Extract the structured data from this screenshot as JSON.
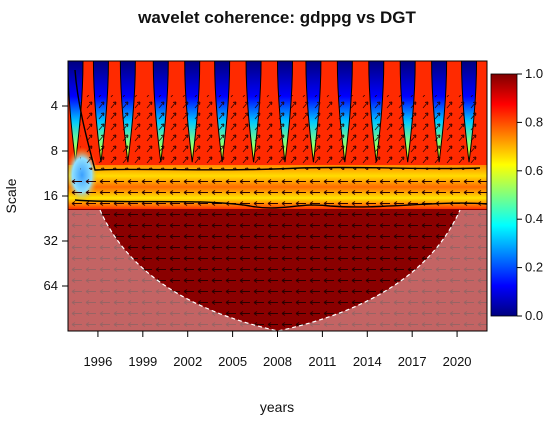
{
  "chart_data": {
    "type": "heatmap",
    "title": "wavelet coherence: gdppg vs DGT",
    "xlabel": "years",
    "ylabel": "Scale",
    "x_ticks": [
      "1996",
      "1999",
      "2002",
      "2005",
      "2008",
      "2011",
      "2014",
      "2017",
      "2020"
    ],
    "xlim": [
      1994,
      2022
    ],
    "y_ticks": [
      "4",
      "8",
      "16",
      "32",
      "64"
    ],
    "y_scale": "log2",
    "ylim": [
      2,
      128
    ],
    "colorbar": {
      "ticks": [
        "0.0",
        "0.2",
        "0.4",
        "0.6",
        "0.8",
        "1.0"
      ],
      "range": [
        0,
        1
      ],
      "colormap": [
        "#00007f",
        "#0000ff",
        "#007fff",
        "#00ffff",
        "#7fff7f",
        "#ffff00",
        "#ff7f00",
        "#ff0000",
        "#7f0000"
      ]
    },
    "peak_years": [
      1994.5,
      1996.2,
      1998.0,
      2000.2,
      2002.3,
      2004.3,
      2006.4,
      2008.5,
      2010.4,
      2012.5,
      2014.6,
      2016.7,
      2018.8,
      2020.8
    ],
    "high_coherence_band_scale": [
      11,
      17
    ],
    "cone_of_influence": "shaded"
  }
}
